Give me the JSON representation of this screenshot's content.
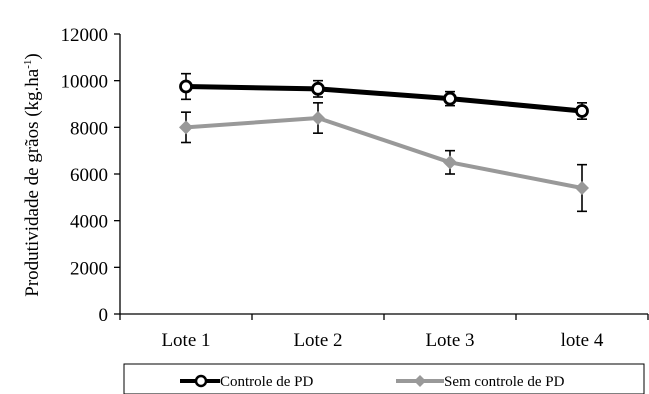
{
  "chart_data": {
    "type": "line",
    "categories": [
      "Lote 1",
      "Lote 2",
      "Lote 3",
      "lote 4"
    ],
    "ylabel": "Produtividade de grãos (kg.ha",
    "ylabel_sup": "-1",
    "ylabel_close": ")",
    "ylim": [
      0,
      12000
    ],
    "yticks": [
      "0",
      "2000",
      "4000",
      "6000",
      "8000",
      "10000",
      "12000"
    ],
    "ytick_values": [
      0,
      2000,
      4000,
      6000,
      8000,
      10000,
      12000
    ],
    "grid": false,
    "legend_position": "bottom",
    "series": [
      {
        "name": "Controle de PD",
        "values": [
          9750,
          9650,
          9230,
          8700
        ],
        "errors": [
          550,
          350,
          300,
          350
        ],
        "color": "#000000",
        "marker": "circle-open"
      },
      {
        "name": "Sem controle de PD",
        "values": [
          8000,
          8400,
          6500,
          5400
        ],
        "errors": [
          650,
          650,
          500,
          1000
        ],
        "color": "#999999",
        "marker": "diamond"
      }
    ]
  }
}
